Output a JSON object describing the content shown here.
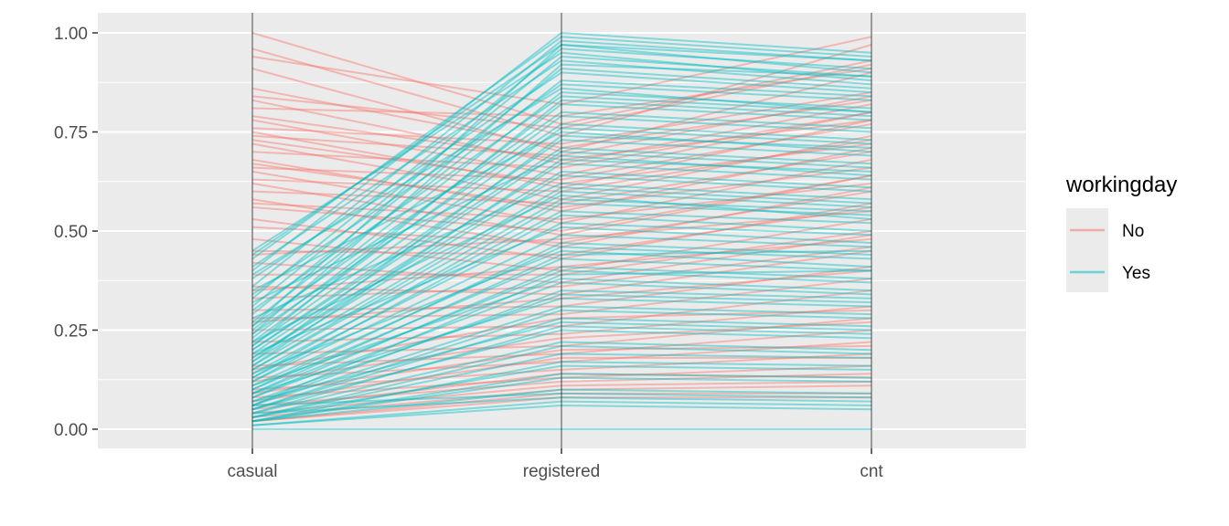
{
  "chart_data": {
    "type": "parallel-coordinates",
    "title": "",
    "xlabel": "",
    "ylabel": "",
    "axes": [
      "casual",
      "registered",
      "cnt"
    ],
    "ylim": [
      0,
      1
    ],
    "y_ticks": [
      0.0,
      0.25,
      0.5,
      0.75,
      1.0
    ],
    "y_tick_labels": [
      "0.00",
      "0.25",
      "0.50",
      "0.75",
      "1.00"
    ],
    "grid": true,
    "legend": {
      "title": "workingday",
      "placement": "right",
      "entries": [
        {
          "label": "No",
          "color": "#F8766D"
        },
        {
          "label": "Yes",
          "color": "#00BFC4"
        }
      ]
    },
    "series": [
      {
        "name": "No",
        "color": "#F8766D",
        "lines": [
          [
            1.0,
            0.77,
            0.93
          ],
          [
            0.96,
            0.74,
            0.97
          ],
          [
            0.94,
            0.82,
            0.99
          ],
          [
            0.91,
            0.7,
            0.9
          ],
          [
            0.84,
            0.76,
            0.92
          ],
          [
            0.83,
            0.67,
            0.82
          ],
          [
            0.81,
            0.79,
            0.91
          ],
          [
            0.78,
            0.64,
            0.8
          ],
          [
            0.76,
            0.72,
            0.85
          ],
          [
            0.75,
            0.61,
            0.78
          ],
          [
            0.74,
            0.69,
            0.84
          ],
          [
            0.72,
            0.58,
            0.74
          ],
          [
            0.7,
            0.66,
            0.8
          ],
          [
            0.68,
            0.55,
            0.71
          ],
          [
            0.66,
            0.63,
            0.77
          ],
          [
            0.65,
            0.52,
            0.68
          ],
          [
            0.63,
            0.6,
            0.73
          ],
          [
            0.62,
            0.49,
            0.64
          ],
          [
            0.6,
            0.57,
            0.7
          ],
          [
            0.58,
            0.46,
            0.61
          ],
          [
            0.56,
            0.5,
            0.64
          ],
          [
            0.53,
            0.43,
            0.57
          ],
          [
            0.51,
            0.47,
            0.6
          ],
          [
            0.48,
            0.4,
            0.53
          ],
          [
            0.45,
            0.44,
            0.56
          ],
          [
            0.42,
            0.37,
            0.49
          ],
          [
            0.39,
            0.39,
            0.5
          ],
          [
            0.36,
            0.34,
            0.45
          ],
          [
            0.33,
            0.36,
            0.46
          ],
          [
            0.3,
            0.31,
            0.41
          ],
          [
            0.28,
            0.29,
            0.38
          ],
          [
            0.25,
            0.26,
            0.35
          ],
          [
            0.22,
            0.24,
            0.31
          ],
          [
            0.19,
            0.21,
            0.28
          ],
          [
            0.16,
            0.19,
            0.25
          ],
          [
            0.13,
            0.17,
            0.22
          ],
          [
            0.1,
            0.15,
            0.19
          ],
          [
            0.08,
            0.13,
            0.16
          ],
          [
            0.06,
            0.12,
            0.14
          ],
          [
            0.04,
            0.11,
            0.12
          ],
          [
            0.03,
            0.1,
            0.11
          ],
          [
            0.02,
            0.09,
            0.09
          ],
          [
            0.02,
            0.08,
            0.08
          ],
          [
            0.05,
            0.14,
            0.13
          ],
          [
            0.07,
            0.18,
            0.18
          ],
          [
            0.09,
            0.2,
            0.21
          ],
          [
            0.12,
            0.23,
            0.27
          ],
          [
            0.15,
            0.28,
            0.3
          ],
          [
            0.27,
            0.33,
            0.4
          ],
          [
            0.35,
            0.41,
            0.48
          ],
          [
            0.44,
            0.48,
            0.55
          ],
          [
            0.57,
            0.53,
            0.62
          ],
          [
            0.67,
            0.56,
            0.66
          ],
          [
            0.73,
            0.62,
            0.72
          ],
          [
            0.79,
            0.68,
            0.78
          ],
          [
            0.86,
            0.71,
            0.83
          ]
        ]
      },
      {
        "name": "Yes",
        "color": "#00BFC4",
        "lines": [
          [
            0.0,
            0.0,
            0.0
          ],
          [
            0.01,
            0.06,
            0.05
          ],
          [
            0.01,
            0.07,
            0.06
          ],
          [
            0.02,
            0.1,
            0.09
          ],
          [
            0.02,
            0.13,
            0.12
          ],
          [
            0.03,
            0.16,
            0.15
          ],
          [
            0.03,
            0.19,
            0.18
          ],
          [
            0.04,
            0.22,
            0.2
          ],
          [
            0.05,
            0.25,
            0.23
          ],
          [
            0.05,
            0.28,
            0.26
          ],
          [
            0.06,
            0.31,
            0.29
          ],
          [
            0.07,
            0.34,
            0.32
          ],
          [
            0.08,
            0.37,
            0.34
          ],
          [
            0.09,
            0.4,
            0.37
          ],
          [
            0.1,
            0.43,
            0.4
          ],
          [
            0.11,
            0.46,
            0.43
          ],
          [
            0.12,
            0.49,
            0.46
          ],
          [
            0.13,
            0.52,
            0.49
          ],
          [
            0.14,
            0.55,
            0.52
          ],
          [
            0.15,
            0.58,
            0.55
          ],
          [
            0.16,
            0.61,
            0.57
          ],
          [
            0.17,
            0.64,
            0.6
          ],
          [
            0.18,
            0.67,
            0.63
          ],
          [
            0.19,
            0.7,
            0.66
          ],
          [
            0.2,
            0.73,
            0.69
          ],
          [
            0.21,
            0.76,
            0.72
          ],
          [
            0.22,
            0.79,
            0.75
          ],
          [
            0.23,
            0.82,
            0.78
          ],
          [
            0.25,
            0.85,
            0.81
          ],
          [
            0.27,
            0.88,
            0.84
          ],
          [
            0.29,
            0.91,
            0.86
          ],
          [
            0.31,
            0.94,
            0.89
          ],
          [
            0.33,
            0.96,
            0.91
          ],
          [
            0.36,
            0.98,
            0.93
          ],
          [
            0.4,
            1.0,
            0.95
          ],
          [
            0.43,
            0.99,
            0.94
          ],
          [
            0.45,
            0.95,
            0.88
          ],
          [
            0.38,
            0.9,
            0.85
          ],
          [
            0.34,
            0.87,
            0.83
          ],
          [
            0.3,
            0.84,
            0.8
          ],
          [
            0.26,
            0.8,
            0.76
          ],
          [
            0.24,
            0.77,
            0.73
          ],
          [
            0.2,
            0.71,
            0.67
          ],
          [
            0.18,
            0.65,
            0.61
          ],
          [
            0.15,
            0.6,
            0.56
          ],
          [
            0.12,
            0.54,
            0.5
          ],
          [
            0.1,
            0.47,
            0.44
          ],
          [
            0.08,
            0.41,
            0.38
          ],
          [
            0.06,
            0.35,
            0.33
          ],
          [
            0.05,
            0.3,
            0.28
          ],
          [
            0.04,
            0.26,
            0.24
          ],
          [
            0.03,
            0.21,
            0.19
          ],
          [
            0.02,
            0.17,
            0.16
          ],
          [
            0.02,
            0.14,
            0.13
          ],
          [
            0.04,
            0.08,
            0.07
          ],
          [
            0.06,
            0.09,
            0.08
          ],
          [
            0.28,
            0.62,
            0.58
          ],
          [
            0.32,
            0.69,
            0.64
          ],
          [
            0.35,
            0.75,
            0.7
          ],
          [
            0.39,
            0.86,
            0.8
          ],
          [
            0.41,
            0.93,
            0.87
          ],
          [
            0.44,
            0.97,
            0.9
          ],
          [
            0.22,
            0.59,
            0.53
          ],
          [
            0.19,
            0.51,
            0.47
          ],
          [
            0.14,
            0.45,
            0.41
          ],
          [
            0.11,
            0.38,
            0.35
          ],
          [
            0.09,
            0.33,
            0.31
          ],
          [
            0.07,
            0.27,
            0.25
          ],
          [
            0.13,
            0.57,
            0.54
          ],
          [
            0.16,
            0.68,
            0.65
          ],
          [
            0.17,
            0.74,
            0.71
          ],
          [
            0.21,
            0.83,
            0.79
          ],
          [
            0.24,
            0.92,
            0.89
          ],
          [
            0.26,
            0.97,
            0.93
          ],
          [
            0.09,
            0.44,
            0.45
          ],
          [
            0.06,
            0.39,
            0.4
          ]
        ]
      }
    ]
  }
}
